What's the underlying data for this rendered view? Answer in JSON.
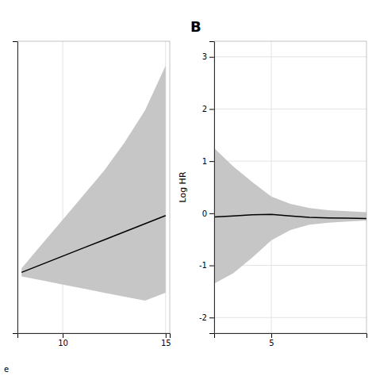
{
  "chart_data": [
    {
      "type": "line",
      "x": [
        8.0,
        9.0,
        10.0,
        11.0,
        12.0,
        13.0,
        14.0,
        15.0
      ],
      "values": [
        -0.25,
        -0.15,
        -0.05,
        0.05,
        0.15,
        0.25,
        0.35,
        0.45
      ],
      "lower": [
        -0.3,
        -0.35,
        -0.4,
        -0.45,
        -0.5,
        -0.55,
        -0.6,
        -0.5
      ],
      "upper": [
        -0.2,
        0.1,
        0.4,
        0.7,
        1.0,
        1.35,
        1.75,
        2.3
      ],
      "xlim": [
        7.8,
        15.2
      ],
      "ylim": [
        -1.0,
        2.6
      ],
      "xticks": [
        10,
        15
      ],
      "yticks": [],
      "grid": true,
      "tick_labels": "x",
      "color": "#000000",
      "annotations": [
        "e"
      ]
    },
    {
      "type": "line",
      "title": "B",
      "ylabel": "Log HR",
      "x": [
        2.0,
        3.0,
        4.0,
        5.0,
        6.0,
        7.0,
        8.0,
        9.0,
        10.0
      ],
      "values": [
        -0.07,
        -0.05,
        -0.03,
        -0.02,
        -0.05,
        -0.08,
        -0.09,
        -0.095,
        -0.1
      ],
      "lower": [
        -1.35,
        -1.15,
        -0.85,
        -0.52,
        -0.32,
        -0.22,
        -0.18,
        -0.16,
        -0.14
      ],
      "upper": [
        1.25,
        0.9,
        0.6,
        0.32,
        0.18,
        0.1,
        0.06,
        0.04,
        0.02
      ],
      "xlim": [
        2.0,
        10.0
      ],
      "ylim": [
        -2.3,
        3.3
      ],
      "xticks": [
        5
      ],
      "yticks": [
        -2,
        -1,
        0,
        1,
        2,
        3
      ],
      "grid": true,
      "color": "#000000"
    }
  ]
}
